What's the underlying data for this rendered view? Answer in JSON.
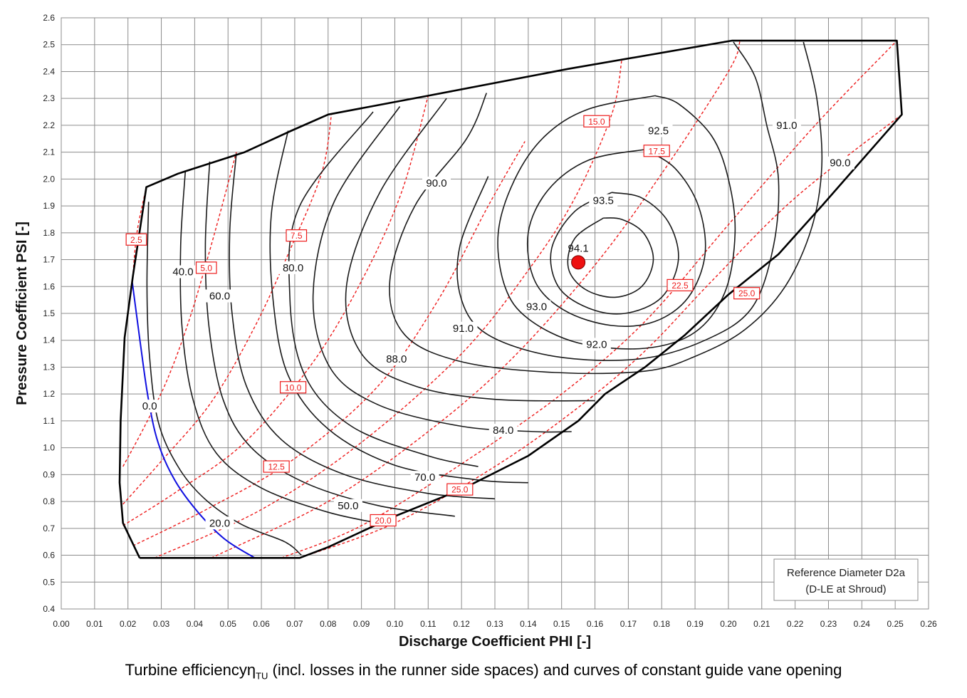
{
  "chart_data": {
    "type": "line",
    "title": "",
    "xlabel": "Discharge Coefficient PHI [-]",
    "ylabel": "Pressure Coefficient PSI [-]",
    "xlim": [
      0.0,
      0.26
    ],
    "ylim": [
      0.4,
      2.6
    ],
    "x_ticks": [
      "0.00",
      "0.01",
      "0.02",
      "0.03",
      "0.04",
      "0.05",
      "0.06",
      "0.07",
      "0.08",
      "0.09",
      "0.10",
      "0.11",
      "0.12",
      "0.13",
      "0.14",
      "0.15",
      "0.16",
      "0.17",
      "0.18",
      "0.19",
      "0.20",
      "0.21",
      "0.22",
      "0.23",
      "0.24",
      "0.25",
      "0.26"
    ],
    "y_ticks": [
      "0.4",
      "0.5",
      "0.6",
      "0.7",
      "0.8",
      "0.9",
      "1.0",
      "1.1",
      "1.2",
      "1.3",
      "1.4",
      "1.5",
      "1.6",
      "1.7",
      "1.8",
      "1.9",
      "2.0",
      "2.1",
      "2.2",
      "2.3",
      "2.4",
      "2.5",
      "2.6"
    ],
    "grid": true,
    "colors": {
      "efficiency_contour": "#1a1a1a",
      "guide_vane": "#ee1c1c",
      "zero_line": "#1010e0",
      "boundary": "#000000",
      "optimum": "#ee1111"
    },
    "boundary": [
      [
        0.0235,
        0.59
      ],
      [
        0.0715,
        0.59
      ],
      [
        0.08,
        0.63
      ],
      [
        0.1,
        0.745
      ],
      [
        0.12,
        0.845
      ],
      [
        0.14,
        0.97
      ],
      [
        0.155,
        1.1
      ],
      [
        0.163,
        1.2
      ],
      [
        0.175,
        1.3
      ],
      [
        0.187,
        1.42
      ],
      [
        0.2,
        1.57
      ],
      [
        0.215,
        1.72
      ],
      [
        0.228,
        1.9
      ],
      [
        0.252,
        2.24
      ],
      [
        0.2505,
        2.515
      ],
      [
        0.201,
        2.515
      ],
      [
        0.152,
        2.41
      ],
      [
        0.11,
        2.31
      ],
      [
        0.08,
        2.24
      ],
      [
        0.069,
        2.18
      ],
      [
        0.055,
        2.1
      ],
      [
        0.035,
        2.02
      ],
      [
        0.0255,
        1.97
      ],
      [
        0.0215,
        1.64
      ],
      [
        0.019,
        1.41
      ],
      [
        0.0178,
        1.1
      ],
      [
        0.0175,
        0.87
      ],
      [
        0.0185,
        0.72
      ],
      [
        0.0235,
        0.59
      ]
    ],
    "efficiency_contours": [
      {
        "value": "0.0",
        "label_at": [
          0.0265,
          1.155
        ],
        "points": [
          [
            0.0213,
            1.615
          ],
          [
            0.0237,
            1.39
          ],
          [
            0.026,
            1.19
          ],
          [
            0.029,
            1.02
          ],
          [
            0.034,
            0.88
          ],
          [
            0.041,
            0.76
          ],
          [
            0.049,
            0.66
          ],
          [
            0.058,
            0.59
          ]
        ]
      },
      {
        "value": "20.0",
        "label_at": [
          0.0475,
          0.72
        ],
        "points": [
          [
            0.0262,
            1.915
          ],
          [
            0.0257,
            1.6
          ],
          [
            0.0264,
            1.35
          ],
          [
            0.029,
            1.1
          ],
          [
            0.035,
            0.93
          ],
          [
            0.043,
            0.81
          ],
          [
            0.054,
            0.715
          ],
          [
            0.067,
            0.65
          ],
          [
            0.072,
            0.6
          ]
        ]
      },
      {
        "value": "40.0",
        "label_at": [
          0.0365,
          1.655
        ],
        "points": [
          [
            0.0372,
            2.03
          ],
          [
            0.0358,
            1.75
          ],
          [
            0.0362,
            1.45
          ],
          [
            0.0395,
            1.18
          ],
          [
            0.0465,
            0.98
          ],
          [
            0.06,
            0.85
          ],
          [
            0.08,
            0.76
          ],
          [
            0.097,
            0.715
          ]
        ]
      },
      {
        "value": "50.0",
        "label_at": [
          0.086,
          0.785
        ],
        "points": [
          [
            0.0445,
            2.065
          ],
          [
            0.0432,
            1.75
          ],
          [
            0.0443,
            1.45
          ],
          [
            0.0485,
            1.18
          ],
          [
            0.057,
            1.0
          ],
          [
            0.073,
            0.87
          ],
          [
            0.095,
            0.785
          ],
          [
            0.118,
            0.745
          ]
        ]
      },
      {
        "value": "60.0",
        "label_at": [
          0.0475,
          1.565
        ],
        "points": [
          [
            0.0525,
            2.095
          ],
          [
            0.0505,
            1.8
          ],
          [
            0.0512,
            1.5
          ],
          [
            0.0555,
            1.23
          ],
          [
            0.066,
            1.03
          ],
          [
            0.085,
            0.9
          ],
          [
            0.11,
            0.83
          ],
          [
            0.13,
            0.81
          ]
        ]
      },
      {
        "value": "70.0",
        "label_at": [
          0.109,
          0.89
        ],
        "points": [
          [
            0.068,
            2.18
          ],
          [
            0.063,
            1.87
          ],
          [
            0.0635,
            1.55
          ],
          [
            0.068,
            1.27
          ],
          [
            0.08,
            1.07
          ],
          [
            0.1,
            0.935
          ],
          [
            0.125,
            0.88
          ],
          [
            0.14,
            0.87
          ]
        ]
      },
      {
        "value": "80.0",
        "label_at": [
          0.0695,
          1.67
        ],
        "points": [
          [
            0.0935,
            2.25
          ],
          [
            0.0715,
            1.9
          ],
          [
            0.0685,
            1.57
          ],
          [
            0.073,
            1.27
          ],
          [
            0.087,
            1.08
          ],
          [
            0.11,
            0.97
          ],
          [
            0.125,
            0.93
          ]
        ]
      },
      {
        "value": "84.0",
        "label_at": [
          0.1325,
          1.065
        ],
        "points": [
          [
            0.1015,
            2.27
          ],
          [
            0.082,
            1.92
          ],
          [
            0.0755,
            1.57
          ],
          [
            0.0805,
            1.3
          ],
          [
            0.095,
            1.16
          ],
          [
            0.12,
            1.08
          ],
          [
            0.142,
            1.06
          ],
          [
            0.153,
            1.06
          ]
        ]
      },
      {
        "value": "88.0",
        "label_at": [
          0.1005,
          1.33
        ],
        "points": [
          [
            0.1155,
            2.3
          ],
          [
            0.0955,
            1.95
          ],
          [
            0.0855,
            1.6
          ],
          [
            0.09,
            1.35
          ],
          [
            0.106,
            1.23
          ],
          [
            0.13,
            1.18
          ],
          [
            0.16,
            1.175
          ]
        ]
      },
      {
        "value": "90.0",
        "label_at": [
          0.1125,
          1.985
        ],
        "points": [
          [
            0.1275,
            2.32
          ],
          [
            0.1215,
            2.15
          ],
          [
            0.106,
            1.9
          ],
          [
            0.0985,
            1.62
          ],
          [
            0.103,
            1.42
          ],
          [
            0.12,
            1.32
          ],
          [
            0.148,
            1.28
          ],
          [
            0.175,
            1.285
          ],
          [
            0.19,
            1.34
          ],
          [
            0.205,
            1.44
          ],
          [
            0.217,
            1.6
          ],
          [
            0.225,
            1.82
          ],
          [
            0.228,
            2.05
          ],
          [
            0.2265,
            2.3
          ],
          [
            0.2225,
            2.51
          ]
        ]
      },
      {
        "value": "90.0",
        "label_at": [
          0.2335,
          2.06
        ],
        "points": []
      },
      {
        "value": "91.0",
        "label_at": [
          0.1205,
          1.445
        ],
        "points": [
          [
            0.128,
            2.01
          ],
          [
            0.1195,
            1.75
          ],
          [
            0.12,
            1.55
          ],
          [
            0.128,
            1.42
          ],
          [
            0.148,
            1.34
          ],
          [
            0.173,
            1.33
          ],
          [
            0.193,
            1.4
          ],
          [
            0.207,
            1.52
          ],
          [
            0.2135,
            1.75
          ],
          [
            0.215,
            2.0
          ],
          [
            0.2115,
            2.2
          ],
          [
            0.208,
            2.38
          ],
          [
            0.2015,
            2.51
          ]
        ]
      },
      {
        "value": "91.0",
        "label_at": [
          0.2175,
          2.2
        ],
        "points": []
      },
      {
        "value": "92.0",
        "label_at": [
          0.1605,
          1.385
        ],
        "points": [
          [
            0.178,
            2.31
          ],
          [
            0.158,
            2.26
          ],
          [
            0.145,
            2.16
          ],
          [
            0.136,
            2.0
          ],
          [
            0.131,
            1.8
          ],
          [
            0.133,
            1.6
          ],
          [
            0.14,
            1.48
          ],
          [
            0.155,
            1.39
          ],
          [
            0.175,
            1.37
          ],
          [
            0.19,
            1.43
          ],
          [
            0.199,
            1.58
          ],
          [
            0.202,
            1.8
          ],
          [
            0.2,
            2.0
          ],
          [
            0.195,
            2.16
          ],
          [
            0.185,
            2.28
          ],
          [
            0.178,
            2.31
          ]
        ]
      },
      {
        "value": "92.5",
        "label_at": [
          0.179,
          2.18
        ],
        "points": [
          [
            0.175,
            2.11
          ],
          [
            0.158,
            2.07
          ],
          [
            0.146,
            1.96
          ],
          [
            0.14,
            1.8
          ],
          [
            0.142,
            1.62
          ],
          [
            0.151,
            1.51
          ],
          [
            0.165,
            1.455
          ],
          [
            0.178,
            1.47
          ],
          [
            0.188,
            1.56
          ],
          [
            0.193,
            1.72
          ],
          [
            0.191,
            1.9
          ],
          [
            0.184,
            2.04
          ],
          [
            0.175,
            2.11
          ]
        ]
      },
      {
        "value": "93.0",
        "label_at": [
          0.1425,
          1.525
        ],
        "points": [
          [
            0.165,
            1.95
          ],
          [
            0.154,
            1.88
          ],
          [
            0.147,
            1.74
          ],
          [
            0.149,
            1.6
          ],
          [
            0.158,
            1.52
          ],
          [
            0.169,
            1.5
          ],
          [
            0.18,
            1.56
          ],
          [
            0.185,
            1.7
          ],
          [
            0.182,
            1.84
          ],
          [
            0.174,
            1.93
          ],
          [
            0.165,
            1.95
          ]
        ]
      },
      {
        "value": "93.5",
        "label_at": [
          0.1625,
          1.92
        ],
        "points": [
          [
            0.1625,
            1.855
          ],
          [
            0.154,
            1.78
          ],
          [
            0.152,
            1.67
          ],
          [
            0.157,
            1.59
          ],
          [
            0.166,
            1.56
          ],
          [
            0.174,
            1.6
          ],
          [
            0.1775,
            1.7
          ],
          [
            0.1745,
            1.8
          ],
          [
            0.168,
            1.85
          ],
          [
            0.1625,
            1.855
          ]
        ]
      }
    ],
    "guide_vane_openings": [
      {
        "value": "2.5",
        "label_at": [
          0.0225,
          1.775
        ],
        "points": [
          [
            0.0213,
            1.615
          ],
          [
            0.0227,
            1.8
          ],
          [
            0.0255,
            1.97
          ]
        ]
      },
      {
        "value": "5.0",
        "label_at": [
          0.0435,
          1.67
        ],
        "points": [
          [
            0.0185,
            0.93
          ],
          [
            0.025,
            1.08
          ],
          [
            0.032,
            1.26
          ],
          [
            0.039,
            1.5
          ],
          [
            0.046,
            1.8
          ],
          [
            0.0525,
            2.1
          ]
        ]
      },
      {
        "value": "7.5",
        "label_at": [
          0.0705,
          1.79
        ],
        "points": [
          [
            0.0185,
            0.79
          ],
          [
            0.03,
            0.95
          ],
          [
            0.045,
            1.17
          ],
          [
            0.058,
            1.45
          ],
          [
            0.068,
            1.72
          ],
          [
            0.078,
            2.02
          ],
          [
            0.081,
            2.24
          ]
        ]
      },
      {
        "value": "10.0",
        "label_at": [
          0.0695,
          1.225
        ],
        "points": [
          [
            0.0185,
            0.71
          ],
          [
            0.035,
            0.84
          ],
          [
            0.055,
            1.02
          ],
          [
            0.075,
            1.31
          ],
          [
            0.09,
            1.62
          ],
          [
            0.102,
            1.95
          ],
          [
            0.11,
            2.31
          ]
        ]
      },
      {
        "value": "12.5",
        "label_at": [
          0.0645,
          0.93
        ],
        "points": [
          [
            0.0215,
            0.635
          ],
          [
            0.045,
            0.78
          ],
          [
            0.07,
            0.96
          ],
          [
            0.095,
            1.23
          ],
          [
            0.113,
            1.55
          ],
          [
            0.128,
            1.9
          ],
          [
            0.139,
            2.14
          ]
        ]
      },
      {
        "value": "15.0",
        "label_at": [
          0.1605,
          2.215
        ],
        "points": [
          [
            0.028,
            0.59
          ],
          [
            0.06,
            0.77
          ],
          [
            0.09,
            1.02
          ],
          [
            0.12,
            1.35
          ],
          [
            0.14,
            1.66
          ],
          [
            0.154,
            1.93
          ],
          [
            0.165,
            2.24
          ],
          [
            0.168,
            2.44
          ]
        ]
      },
      {
        "value": "17.5",
        "label_at": [
          0.1785,
          2.105
        ],
        "points": [
          [
            0.045,
            0.59
          ],
          [
            0.08,
            0.8
          ],
          [
            0.11,
            1.06
          ],
          [
            0.135,
            1.33
          ],
          [
            0.16,
            1.68
          ],
          [
            0.18,
            2.02
          ],
          [
            0.2,
            2.4
          ],
          [
            0.2035,
            2.515
          ]
        ]
      },
      {
        "value": "20.0",
        "label_at": [
          0.0965,
          0.73
        ],
        "points": [
          [
            0.066,
            0.59
          ],
          [
            0.09,
            0.71
          ],
          [
            0.12,
            0.94
          ],
          [
            0.15,
            1.2
          ],
          [
            0.175,
            1.47
          ],
          [
            0.2,
            1.83
          ],
          [
            0.226,
            2.2
          ],
          [
            0.2505,
            2.515
          ]
        ]
      },
      {
        "value": "22.5",
        "label_at": [
          0.1855,
          1.605
        ],
        "points": [
          [
            0.0715,
            0.59
          ],
          [
            0.1,
            0.72
          ],
          [
            0.13,
            0.93
          ],
          [
            0.155,
            1.15
          ],
          [
            0.175,
            1.36
          ],
          [
            0.195,
            1.62
          ],
          [
            0.22,
            1.93
          ],
          [
            0.252,
            2.24
          ]
        ]
      },
      {
        "value": "25.0",
        "label_at": [
          0.2055,
          1.575
        ],
        "points": []
      },
      {
        "value": "25.0",
        "label_at": [
          0.1195,
          0.845
        ],
        "points": []
      }
    ],
    "optimum": {
      "label": "94.1",
      "x": 0.155,
      "y": 1.69
    },
    "reference_box": {
      "line1": "Reference Diameter D2a",
      "line2": "(D-LE at Shroud)"
    }
  },
  "caption": {
    "prefix": "Turbine efficiency",
    "symbol": "η",
    "subscript": "TU",
    "suffix": " (incl. losses in the runner side spaces) and curves of constant guide vane opening"
  }
}
